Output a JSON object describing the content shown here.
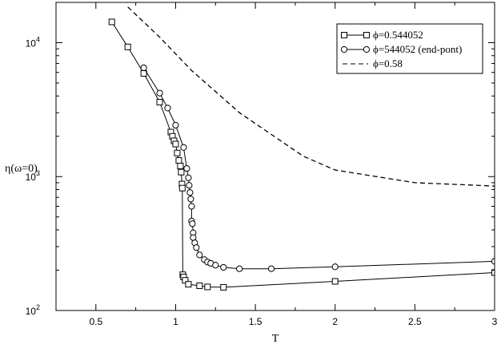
{
  "chart_data": {
    "type": "line",
    "xlabel": "T",
    "ylabel": "η(ω=0)",
    "xlim": [
      0.25,
      3.0
    ],
    "ylim": [
      100,
      20000
    ],
    "yscale": "log",
    "x_ticks": [
      "0.5",
      "1",
      "1.5",
      "2",
      "2.5",
      "3"
    ],
    "x_tick_values": [
      0.5,
      1.0,
      1.5,
      2.0,
      2.5,
      3.0
    ],
    "y_ticks": [
      {
        "value": 100,
        "base": "10",
        "exp": "2"
      },
      {
        "value": 1000,
        "base": "10",
        "exp": "3"
      },
      {
        "value": 10000,
        "base": "10",
        "exp": "4"
      }
    ],
    "grid": false,
    "legend_position": "top-right",
    "series": [
      {
        "name": "ϕ=0.544052",
        "style": "solid-square",
        "color": "#000000",
        "points": [
          [
            0.6,
            14300
          ],
          [
            0.7,
            9300
          ],
          [
            0.8,
            5900
          ],
          [
            0.9,
            3600
          ],
          [
            0.97,
            2150
          ],
          [
            0.98,
            2000
          ],
          [
            0.99,
            1850
          ],
          [
            1.0,
            1750
          ],
          [
            1.01,
            1500
          ],
          [
            1.02,
            1320
          ],
          [
            1.03,
            1200
          ],
          [
            1.035,
            1080
          ],
          [
            1.04,
            880
          ],
          [
            1.042,
            820
          ],
          [
            1.045,
            185
          ],
          [
            1.05,
            178
          ],
          [
            1.06,
            168
          ],
          [
            1.08,
            157
          ],
          [
            1.15,
            153
          ],
          [
            1.2,
            150
          ],
          [
            1.3,
            149
          ],
          [
            2.0,
            165
          ],
          [
            3.0,
            192
          ]
        ]
      },
      {
        "name": "ϕ=544052 (end-pont)",
        "style": "solid-circle",
        "color": "#000000",
        "points": [
          [
            0.8,
            6500
          ],
          [
            0.9,
            4200
          ],
          [
            0.95,
            3250
          ],
          [
            1.0,
            2420
          ],
          [
            1.05,
            1650
          ],
          [
            1.07,
            1150
          ],
          [
            1.08,
            980
          ],
          [
            1.085,
            860
          ],
          [
            1.09,
            760
          ],
          [
            1.095,
            680
          ],
          [
            1.1,
            600
          ],
          [
            1.1,
            465
          ],
          [
            1.105,
            445
          ],
          [
            1.11,
            380
          ],
          [
            1.11,
            350
          ],
          [
            1.12,
            320
          ],
          [
            1.13,
            295
          ],
          [
            1.15,
            260
          ],
          [
            1.18,
            240
          ],
          [
            1.2,
            230
          ],
          [
            1.22,
            225
          ],
          [
            1.25,
            218
          ],
          [
            1.3,
            210
          ],
          [
            1.4,
            205
          ],
          [
            1.6,
            205
          ],
          [
            2.0,
            212
          ],
          [
            3.0,
            233
          ]
        ]
      },
      {
        "name": "ϕ=0.58",
        "style": "dashed",
        "color": "#000000",
        "points": [
          [
            0.7,
            18500
          ],
          [
            0.9,
            11000
          ],
          [
            1.1,
            6200
          ],
          [
            1.4,
            3000
          ],
          [
            1.8,
            1420
          ],
          [
            2.0,
            1120
          ],
          [
            2.5,
            900
          ],
          [
            3.0,
            850
          ]
        ]
      }
    ]
  }
}
